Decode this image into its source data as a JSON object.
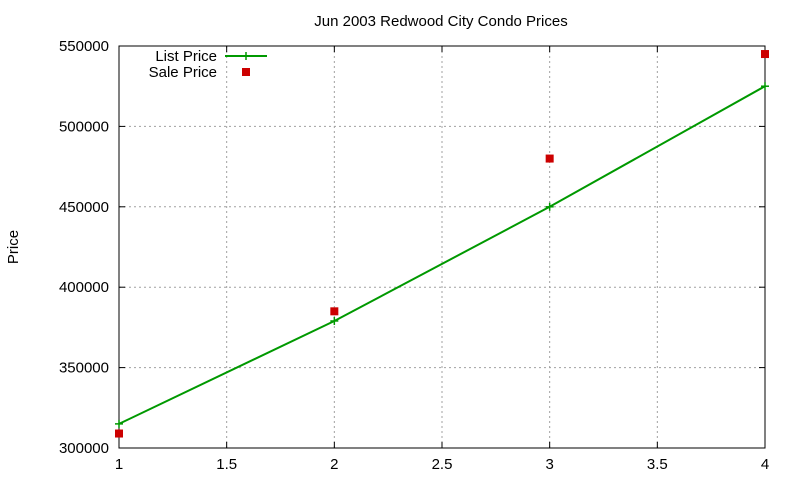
{
  "chart_data": {
    "type": "line",
    "title": "Jun 2003 Redwood City Condo Prices",
    "xlabel": "",
    "ylabel": "Price",
    "xlim": [
      1,
      4
    ],
    "ylim": [
      300000,
      550000
    ],
    "x_ticks": [
      1,
      1.5,
      2,
      2.5,
      3,
      3.5,
      4
    ],
    "x_tick_labels": [
      "1",
      "1.5",
      "2",
      "2.5",
      "3",
      "3.5",
      "4"
    ],
    "y_ticks": [
      300000,
      350000,
      400000,
      450000,
      500000,
      550000
    ],
    "y_tick_labels": [
      "300000",
      "350000",
      "400000",
      "450000",
      "500000",
      "550000"
    ],
    "grid": true,
    "legend_position": "top-left",
    "series": [
      {
        "name": "List Price",
        "style": "line-points",
        "marker": "plus",
        "color": "#009900",
        "x": [
          1,
          2,
          3,
          4
        ],
        "y": [
          315000,
          379000,
          450000,
          525000
        ]
      },
      {
        "name": "Sale Price",
        "style": "points",
        "marker": "square",
        "color": "#cc0000",
        "x": [
          1,
          2,
          3,
          4
        ],
        "y": [
          309000,
          385000,
          480000,
          545000
        ]
      }
    ]
  }
}
